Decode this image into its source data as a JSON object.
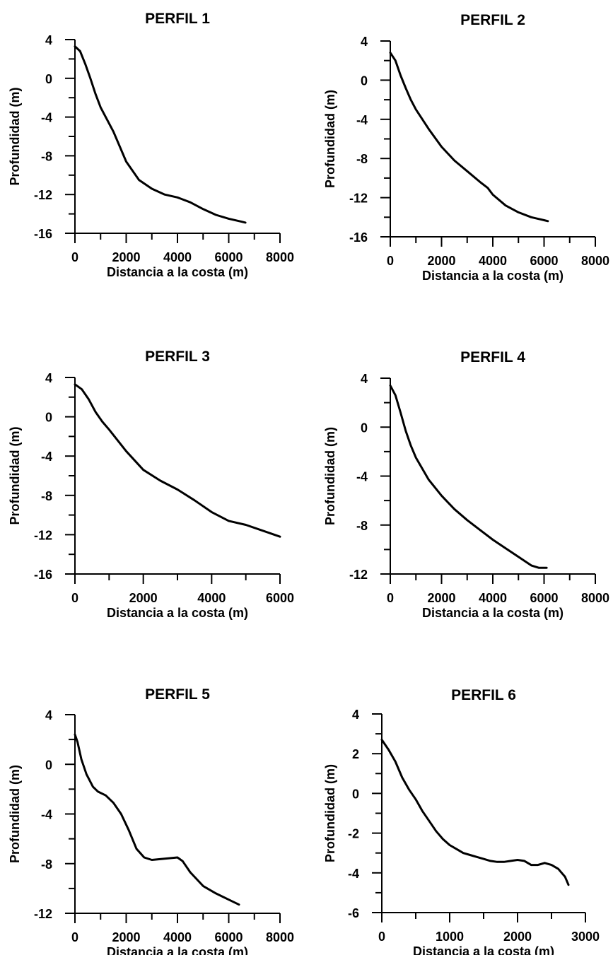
{
  "chart_data": [
    {
      "type": "line",
      "title": "PERFIL 1",
      "xlabel": "Distancia a la costa (m)",
      "ylabel": "Profundidad (m)",
      "xlim": [
        0,
        8000
      ],
      "ylim": [
        -16,
        4
      ],
      "xticks": [
        0,
        2000,
        4000,
        6000,
        8000
      ],
      "yticks": [
        4,
        0,
        -4,
        -8,
        -12,
        -16
      ],
      "grid": false,
      "x": [
        0,
        200,
        400,
        600,
        800,
        1000,
        1500,
        2000,
        2500,
        3000,
        3500,
        4000,
        4500,
        5000,
        5500,
        6000,
        6500,
        6650
      ],
      "y": [
        3.3,
        2.8,
        1.5,
        0.0,
        -1.6,
        -3.0,
        -5.5,
        -8.6,
        -10.5,
        -11.4,
        -12.0,
        -12.3,
        -12.8,
        -13.5,
        -14.1,
        -14.5,
        -14.8,
        -14.9
      ]
    },
    {
      "type": "line",
      "title": "PERFIL 2",
      "xlabel": "Distancia a la costa (m)",
      "ylabel": "Profundidad (m)",
      "xlim": [
        0,
        8000
      ],
      "ylim": [
        -16,
        4
      ],
      "xticks": [
        0,
        2000,
        4000,
        6000,
        8000
      ],
      "yticks": [
        4,
        0,
        -4,
        -8,
        -12,
        -16
      ],
      "grid": false,
      "x": [
        0,
        200,
        400,
        600,
        800,
        1000,
        1500,
        2000,
        2500,
        3000,
        3500,
        3800,
        4000,
        4500,
        5000,
        5500,
        6000,
        6150
      ],
      "y": [
        2.8,
        2.0,
        0.5,
        -0.8,
        -2.0,
        -3.0,
        -5.0,
        -6.8,
        -8.2,
        -9.3,
        -10.4,
        -11.0,
        -11.7,
        -12.8,
        -13.5,
        -14.0,
        -14.3,
        -14.4
      ]
    },
    {
      "type": "line",
      "title": "PERFIL 3",
      "xlabel": "Distancia a la costa (m)",
      "ylabel": "Profundidad (m)",
      "xlim": [
        0,
        6000
      ],
      "ylim": [
        -16,
        4
      ],
      "xticks": [
        0,
        2000,
        4000,
        6000
      ],
      "yticks": [
        4,
        0,
        -4,
        -8,
        -12,
        -16
      ],
      "grid": false,
      "x": [
        0,
        200,
        400,
        600,
        800,
        1000,
        1500,
        2000,
        2500,
        3000,
        3500,
        4000,
        4500,
        5000,
        5500,
        6000
      ],
      "y": [
        3.3,
        2.8,
        1.8,
        0.5,
        -0.5,
        -1.3,
        -3.5,
        -5.4,
        -6.5,
        -7.4,
        -8.5,
        -9.7,
        -10.6,
        -11.0,
        -11.6,
        -12.2
      ]
    },
    {
      "type": "line",
      "title": "PERFIL 4",
      "xlabel": "Distancia a la costa (m)",
      "ylabel": "Profundidad (m)",
      "xlim": [
        0,
        8000
      ],
      "ylim": [
        -12,
        4
      ],
      "xticks": [
        0,
        2000,
        4000,
        6000,
        8000
      ],
      "yticks": [
        4,
        0,
        -4,
        -8,
        -12
      ],
      "grid": false,
      "x": [
        0,
        200,
        400,
        600,
        800,
        1000,
        1500,
        2000,
        2500,
        3000,
        3500,
        4000,
        4500,
        5000,
        5500,
        5800,
        6100
      ],
      "y": [
        3.4,
        2.6,
        1.2,
        -0.3,
        -1.5,
        -2.5,
        -4.3,
        -5.6,
        -6.7,
        -7.6,
        -8.4,
        -9.2,
        -9.9,
        -10.6,
        -11.3,
        -11.5,
        -11.5
      ]
    },
    {
      "type": "line",
      "title": "PERFIL 5",
      "xlabel": "Distancia a la costa (m)",
      "ylabel": "Profundidad (m)",
      "xlim": [
        0,
        8000
      ],
      "ylim": [
        -12,
        4
      ],
      "xticks": [
        0,
        2000,
        4000,
        6000,
        8000
      ],
      "yticks": [
        4,
        0,
        -4,
        -8,
        -12
      ],
      "grid": false,
      "x": [
        0,
        100,
        250,
        450,
        700,
        900,
        1200,
        1500,
        1800,
        2100,
        2400,
        2700,
        3000,
        3500,
        4000,
        4200,
        4500,
        5000,
        5500,
        6000,
        6400
      ],
      "y": [
        2.4,
        1.8,
        0.4,
        -0.8,
        -1.8,
        -2.2,
        -2.5,
        -3.1,
        -4.0,
        -5.3,
        -6.8,
        -7.5,
        -7.7,
        -7.6,
        -7.5,
        -7.8,
        -8.7,
        -9.8,
        -10.4,
        -10.9,
        -11.3
      ]
    },
    {
      "type": "line",
      "title": "PERFIL 6",
      "xlabel": "Distancia a la costa (m)",
      "ylabel": "Profundidad (m)",
      "xlim": [
        0,
        3000
      ],
      "ylim": [
        -6,
        4
      ],
      "xticks": [
        0,
        1000,
        2000,
        3000
      ],
      "yticks": [
        4,
        2,
        0,
        -2,
        -4,
        -6
      ],
      "grid": false,
      "x": [
        0,
        100,
        200,
        300,
        400,
        500,
        600,
        700,
        800,
        900,
        1000,
        1100,
        1200,
        1300,
        1400,
        1500,
        1600,
        1700,
        1800,
        1900,
        2000,
        2100,
        2200,
        2300,
        2400,
        2500,
        2600,
        2700,
        2750
      ],
      "y": [
        2.7,
        2.2,
        1.6,
        0.8,
        0.2,
        -0.3,
        -0.9,
        -1.4,
        -1.9,
        -2.3,
        -2.6,
        -2.8,
        -3.0,
        -3.1,
        -3.2,
        -3.3,
        -3.4,
        -3.45,
        -3.45,
        -3.4,
        -3.35,
        -3.4,
        -3.6,
        -3.6,
        -3.5,
        -3.6,
        -3.8,
        -4.2,
        -4.6
      ]
    }
  ]
}
